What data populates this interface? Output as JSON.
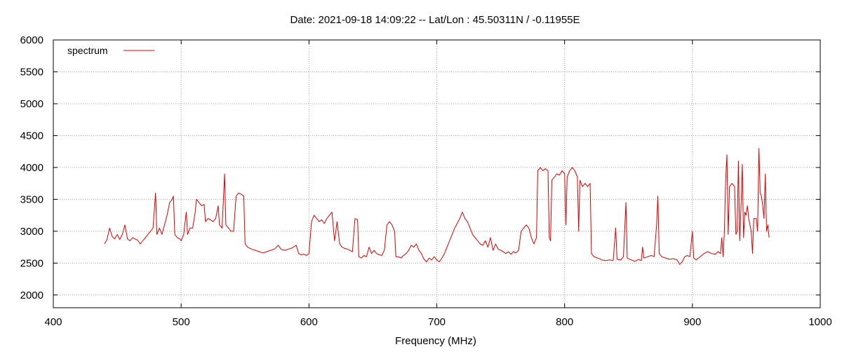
{
  "chart_data": {
    "type": "line",
    "title": "Date: 2021-09-18 14:09:22  --  Lat/Lon : 45.50311N / -0.11955E",
    "xlabel": "Frequency (MHz)",
    "ylabel": "",
    "xlim": [
      400,
      1000
    ],
    "ylim": [
      1800,
      6000
    ],
    "x_ticks": [
      400,
      500,
      600,
      700,
      800,
      900,
      1000
    ],
    "y_ticks": [
      2000,
      2500,
      3000,
      3500,
      4000,
      4500,
      5000,
      5500,
      6000
    ],
    "grid": true,
    "legend_position": "top-left",
    "series": [
      {
        "name": "spectrum",
        "color": "#e00000",
        "points": [
          [
            440,
            2800
          ],
          [
            442,
            2870
          ],
          [
            444,
            3050
          ],
          [
            446,
            2920
          ],
          [
            448,
            2880
          ],
          [
            450,
            2950
          ],
          [
            452,
            2870
          ],
          [
            454,
            2950
          ],
          [
            456,
            3100
          ],
          [
            458,
            2880
          ],
          [
            460,
            2850
          ],
          [
            462,
            2900
          ],
          [
            464,
            2880
          ],
          [
            466,
            2860
          ],
          [
            468,
            2800
          ],
          [
            470,
            2850
          ],
          [
            472,
            2900
          ],
          [
            474,
            2950
          ],
          [
            476,
            3000
          ],
          [
            478,
            3050
          ],
          [
            480,
            3600
          ],
          [
            481,
            2950
          ],
          [
            483,
            3050
          ],
          [
            485,
            2950
          ],
          [
            487,
            3100
          ],
          [
            489,
            3250
          ],
          [
            491,
            3450
          ],
          [
            493,
            3500
          ],
          [
            494,
            3550
          ],
          [
            495,
            2950
          ],
          [
            497,
            2900
          ],
          [
            499,
            2880
          ],
          [
            500,
            2850
          ],
          [
            502,
            2950
          ],
          [
            504,
            3300
          ],
          [
            505,
            2950
          ],
          [
            507,
            3050
          ],
          [
            509,
            3050
          ],
          [
            511,
            3300
          ],
          [
            512,
            3500
          ],
          [
            514,
            3450
          ],
          [
            516,
            3400
          ],
          [
            518,
            3420
          ],
          [
            519,
            3150
          ],
          [
            521,
            3200
          ],
          [
            523,
            3180
          ],
          [
            525,
            3150
          ],
          [
            527,
            3200
          ],
          [
            529,
            3400
          ],
          [
            530,
            3100
          ],
          [
            532,
            3050
          ],
          [
            534,
            3900
          ],
          [
            535,
            3100
          ],
          [
            537,
            3050
          ],
          [
            539,
            3000
          ],
          [
            541,
            3000
          ],
          [
            543,
            3550
          ],
          [
            545,
            3600
          ],
          [
            547,
            3580
          ],
          [
            549,
            3550
          ],
          [
            550,
            2800
          ],
          [
            552,
            2750
          ],
          [
            555,
            2720
          ],
          [
            558,
            2700
          ],
          [
            561,
            2680
          ],
          [
            564,
            2660
          ],
          [
            567,
            2680
          ],
          [
            570,
            2700
          ],
          [
            573,
            2720
          ],
          [
            576,
            2780
          ],
          [
            578,
            2720
          ],
          [
            581,
            2700
          ],
          [
            584,
            2720
          ],
          [
            587,
            2740
          ],
          [
            590,
            2780
          ],
          [
            592,
            2650
          ],
          [
            594,
            2630
          ],
          [
            596,
            2640
          ],
          [
            598,
            2620
          ],
          [
            600,
            2650
          ],
          [
            602,
            3150
          ],
          [
            604,
            3250
          ],
          [
            606,
            3200
          ],
          [
            608,
            3150
          ],
          [
            610,
            3180
          ],
          [
            612,
            3120
          ],
          [
            614,
            3200
          ],
          [
            616,
            3250
          ],
          [
            618,
            3300
          ],
          [
            620,
            2850
          ],
          [
            622,
            3150
          ],
          [
            624,
            2800
          ],
          [
            626,
            2750
          ],
          [
            628,
            2730
          ],
          [
            630,
            2720
          ],
          [
            632,
            2700
          ],
          [
            634,
            2680
          ],
          [
            636,
            3200
          ],
          [
            638,
            3180
          ],
          [
            639,
            2600
          ],
          [
            641,
            2580
          ],
          [
            643,
            2620
          ],
          [
            645,
            2600
          ],
          [
            647,
            2750
          ],
          [
            649,
            2650
          ],
          [
            651,
            2700
          ],
          [
            653,
            2650
          ],
          [
            655,
            2630
          ],
          [
            657,
            2620
          ],
          [
            659,
            2700
          ],
          [
            661,
            3100
          ],
          [
            663,
            3150
          ],
          [
            665,
            3100
          ],
          [
            667,
            3000
          ],
          [
            668,
            2600
          ],
          [
            670,
            2600
          ],
          [
            672,
            2580
          ],
          [
            674,
            2620
          ],
          [
            676,
            2650
          ],
          [
            678,
            2700
          ],
          [
            680,
            2780
          ],
          [
            682,
            2750
          ],
          [
            684,
            2800
          ],
          [
            686,
            2700
          ],
          [
            688,
            2650
          ],
          [
            690,
            2560
          ],
          [
            692,
            2520
          ],
          [
            694,
            2580
          ],
          [
            696,
            2550
          ],
          [
            698,
            2600
          ],
          [
            700,
            2550
          ],
          [
            702,
            2520
          ],
          [
            704,
            2580
          ],
          [
            706,
            2650
          ],
          [
            708,
            2750
          ],
          [
            710,
            2850
          ],
          [
            712,
            2950
          ],
          [
            714,
            3050
          ],
          [
            716,
            3120
          ],
          [
            718,
            3200
          ],
          [
            720,
            3300
          ],
          [
            722,
            3200
          ],
          [
            724,
            3150
          ],
          [
            726,
            3050
          ],
          [
            728,
            2950
          ],
          [
            730,
            2900
          ],
          [
            732,
            2850
          ],
          [
            734,
            2800
          ],
          [
            736,
            2780
          ],
          [
            738,
            2850
          ],
          [
            740,
            2750
          ],
          [
            742,
            2900
          ],
          [
            744,
            2700
          ],
          [
            746,
            2800
          ],
          [
            748,
            2720
          ],
          [
            750,
            2700
          ],
          [
            752,
            2680
          ],
          [
            754,
            2650
          ],
          [
            756,
            2680
          ],
          [
            758,
            2640
          ],
          [
            760,
            2680
          ],
          [
            762,
            2660
          ],
          [
            764,
            2700
          ],
          [
            766,
            3000
          ],
          [
            768,
            3050
          ],
          [
            770,
            3100
          ],
          [
            772,
            3050
          ],
          [
            774,
            2900
          ],
          [
            776,
            2800
          ],
          [
            778,
            2900
          ],
          [
            779,
            3950
          ],
          [
            781,
            4000
          ],
          [
            783,
            3950
          ],
          [
            785,
            3980
          ],
          [
            787,
            3950
          ],
          [
            788,
            2900
          ],
          [
            789,
            2850
          ],
          [
            790,
            3800
          ],
          [
            792,
            3850
          ],
          [
            794,
            3900
          ],
          [
            796,
            3880
          ],
          [
            798,
            3950
          ],
          [
            800,
            3900
          ],
          [
            801,
            3100
          ],
          [
            802,
            3850
          ],
          [
            804,
            3950
          ],
          [
            806,
            4000
          ],
          [
            808,
            3950
          ],
          [
            810,
            3850
          ],
          [
            811,
            3000
          ],
          [
            812,
            3800
          ],
          [
            814,
            3700
          ],
          [
            816,
            3750
          ],
          [
            818,
            3700
          ],
          [
            820,
            3750
          ],
          [
            821,
            2650
          ],
          [
            823,
            2600
          ],
          [
            826,
            2580
          ],
          [
            829,
            2550
          ],
          [
            832,
            2540
          ],
          [
            835,
            2550
          ],
          [
            838,
            2540
          ],
          [
            840,
            3050
          ],
          [
            841,
            2560
          ],
          [
            844,
            2550
          ],
          [
            846,
            2600
          ],
          [
            848,
            3450
          ],
          [
            849,
            2580
          ],
          [
            852,
            2550
          ],
          [
            855,
            2530
          ],
          [
            858,
            2560
          ],
          [
            860,
            2540
          ],
          [
            861,
            2750
          ],
          [
            862,
            2580
          ],
          [
            865,
            2600
          ],
          [
            868,
            2620
          ],
          [
            870,
            2600
          ],
          [
            872,
            3100
          ],
          [
            873,
            3550
          ],
          [
            874,
            2650
          ],
          [
            876,
            2600
          ],
          [
            879,
            2580
          ],
          [
            882,
            2560
          ],
          [
            885,
            2570
          ],
          [
            888,
            2550
          ],
          [
            890,
            2480
          ],
          [
            892,
            2520
          ],
          [
            894,
            2600
          ],
          [
            896,
            2620
          ],
          [
            898,
            2600
          ],
          [
            900,
            3000
          ],
          [
            901,
            2580
          ],
          [
            903,
            2550
          ],
          [
            906,
            2600
          ],
          [
            909,
            2650
          ],
          [
            912,
            2680
          ],
          [
            915,
            2650
          ],
          [
            918,
            2640
          ],
          [
            920,
            2680
          ],
          [
            922,
            2650
          ],
          [
            923,
            2900
          ],
          [
            924,
            2600
          ],
          [
            925,
            3000
          ],
          [
            926,
            3800
          ],
          [
            927,
            4200
          ],
          [
            928,
            2950
          ],
          [
            929,
            3700
          ],
          [
            931,
            3750
          ],
          [
            933,
            3700
          ],
          [
            934,
            2950
          ],
          [
            935,
            3000
          ],
          [
            936,
            4100
          ],
          [
            937,
            2850
          ],
          [
            938,
            3400
          ],
          [
            939,
            4050
          ],
          [
            940,
            2900
          ],
          [
            941,
            3300
          ],
          [
            942,
            3250
          ],
          [
            943,
            3400
          ],
          [
            944,
            3200
          ],
          [
            945,
            3100
          ],
          [
            946,
            3000
          ],
          [
            947,
            2650
          ],
          [
            948,
            3200
          ],
          [
            950,
            3200
          ],
          [
            951,
            3000
          ],
          [
            952,
            4300
          ],
          [
            953,
            3600
          ],
          [
            954,
            3550
          ],
          [
            955,
            3400
          ],
          [
            956,
            3200
          ],
          [
            957,
            3900
          ],
          [
            958,
            3000
          ],
          [
            959,
            3100
          ],
          [
            960,
            2900
          ]
        ]
      }
    ]
  }
}
